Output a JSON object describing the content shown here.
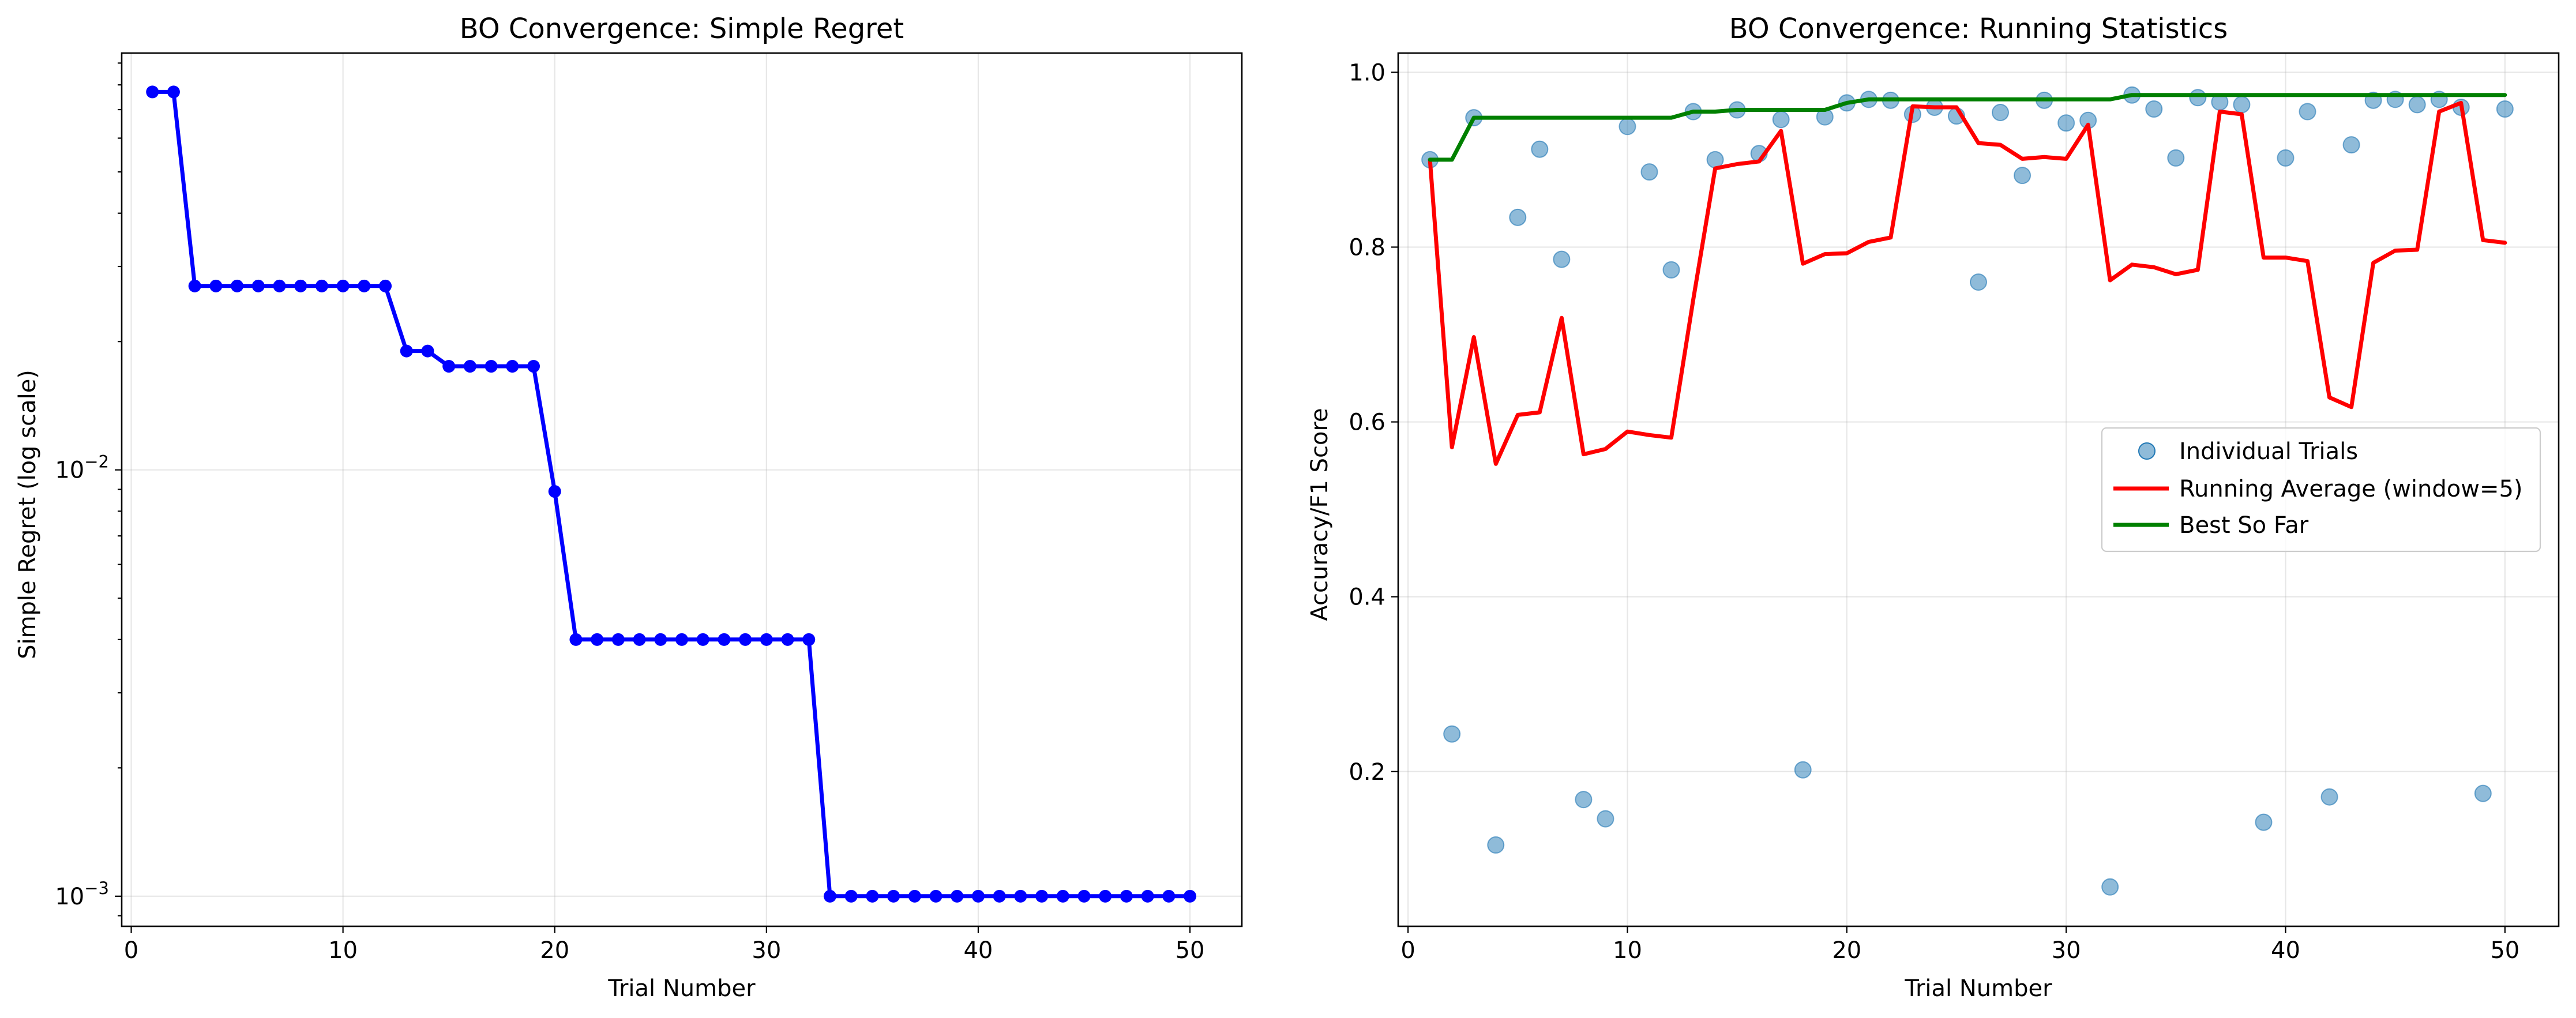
{
  "chart_data": [
    {
      "type": "line",
      "title": "BO Convergence: Simple Regret",
      "xlabel": "Trial Number",
      "ylabel": "Simple Regret (log scale)",
      "xlim": [
        -0.45,
        52.45
      ],
      "ylim": [
        0.00085,
        0.095
      ],
      "yscale": "log",
      "grid": true,
      "x_ticks": [
        0,
        10,
        20,
        30,
        40,
        50
      ],
      "y_ticks": [
        {
          "value": 0.01,
          "base": "10",
          "exp": "−2"
        },
        {
          "value": 0.001,
          "base": "10",
          "exp": "−3"
        }
      ],
      "series": [
        {
          "color": "#0000ff",
          "marker": "circle",
          "x": [
            1,
            2,
            3,
            4,
            5,
            6,
            7,
            8,
            9,
            10,
            11,
            12,
            13,
            14,
            15,
            16,
            17,
            18,
            19,
            20,
            21,
            22,
            23,
            24,
            25,
            26,
            27,
            28,
            29,
            30,
            31,
            32,
            33,
            34,
            35,
            36,
            37,
            38,
            39,
            40,
            41,
            42,
            43,
            44,
            45,
            46,
            47,
            48,
            49,
            50
          ],
          "y": [
            0.077,
            0.077,
            0.027,
            0.027,
            0.027,
            0.027,
            0.027,
            0.027,
            0.027,
            0.027,
            0.027,
            0.027,
            0.019,
            0.019,
            0.0175,
            0.0175,
            0.0175,
            0.0175,
            0.0175,
            0.0089,
            0.004,
            0.004,
            0.004,
            0.004,
            0.004,
            0.004,
            0.004,
            0.004,
            0.004,
            0.004,
            0.004,
            0.004,
            0.001,
            0.001,
            0.001,
            0.001,
            0.001,
            0.001,
            0.001,
            0.001,
            0.001,
            0.001,
            0.001,
            0.001,
            0.001,
            0.001,
            0.001,
            0.001,
            0.001,
            0.001
          ]
        }
      ]
    },
    {
      "type": "line",
      "title": "BO Convergence: Running Statistics",
      "xlabel": "Trial Number",
      "ylabel": "Accuracy/F1 Score",
      "xlim": [
        -0.45,
        52.45
      ],
      "ylim": [
        0.023,
        1.022
      ],
      "grid": true,
      "legend_position": "center-right",
      "x_ticks": [
        0,
        10,
        20,
        30,
        40,
        50
      ],
      "y_ticks": [
        0.2,
        0.4,
        0.6,
        0.8,
        1.0
      ],
      "y_tick_labels": [
        "0.2",
        "0.4",
        "0.6",
        "0.8",
        "1.0"
      ],
      "series": [
        {
          "name": "Individual Trials",
          "kind": "scatter",
          "color": "#1f77b4",
          "x": [
            1,
            2,
            3,
            4,
            5,
            6,
            7,
            8,
            9,
            10,
            11,
            12,
            13,
            14,
            15,
            16,
            17,
            18,
            19,
            20,
            21,
            22,
            23,
            24,
            25,
            26,
            27,
            28,
            29,
            30,
            31,
            32,
            33,
            34,
            35,
            36,
            37,
            38,
            39,
            40,
            41,
            42,
            43,
            44,
            45,
            46,
            47,
            48,
            49,
            50
          ],
          "y": [
            0.9,
            0.243,
            0.948,
            0.116,
            0.834,
            0.912,
            0.786,
            0.168,
            0.146,
            0.938,
            0.886,
            0.774,
            0.955,
            0.9,
            0.957,
            0.907,
            0.946,
            0.202,
            0.949,
            0.965,
            0.969,
            0.968,
            0.952,
            0.96,
            0.95,
            0.76,
            0.954,
            0.882,
            0.968,
            0.942,
            0.945,
            0.068,
            0.974,
            0.958,
            0.902,
            0.971,
            0.966,
            0.963,
            0.142,
            0.902,
            0.955,
            0.171,
            0.917,
            0.968,
            0.969,
            0.963,
            0.969,
            0.96,
            0.175,
            0.958
          ]
        },
        {
          "name": "Running Average (window=5)",
          "kind": "line",
          "color": "#ff0000",
          "x": [
            1,
            2,
            3,
            4,
            5,
            6,
            7,
            8,
            9,
            10,
            11,
            12,
            13,
            14,
            15,
            16,
            17,
            18,
            19,
            20,
            21,
            22,
            23,
            24,
            25,
            26,
            27,
            28,
            29,
            30,
            31,
            32,
            33,
            34,
            35,
            36,
            37,
            38,
            39,
            40,
            41,
            42,
            43,
            44,
            45,
            46,
            47,
            48,
            49,
            50
          ],
          "y": [
            0.9,
            0.571,
            0.697,
            0.552,
            0.608,
            0.611,
            0.719,
            0.563,
            0.569,
            0.589,
            0.585,
            0.582,
            0.74,
            0.89,
            0.895,
            0.898,
            0.933,
            0.781,
            0.792,
            0.793,
            0.806,
            0.811,
            0.961,
            0.96,
            0.96,
            0.919,
            0.917,
            0.901,
            0.903,
            0.901,
            0.94,
            0.762,
            0.78,
            0.777,
            0.769,
            0.774,
            0.955,
            0.952,
            0.788,
            0.788,
            0.784,
            0.628,
            0.617,
            0.782,
            0.796,
            0.797,
            0.955,
            0.965,
            0.808,
            0.805
          ]
        },
        {
          "name": "Best So Far",
          "kind": "line",
          "color": "#008000",
          "x": [
            1,
            2,
            3,
            4,
            5,
            6,
            7,
            8,
            9,
            10,
            11,
            12,
            13,
            14,
            15,
            16,
            17,
            18,
            19,
            20,
            21,
            22,
            23,
            24,
            25,
            26,
            27,
            28,
            29,
            30,
            31,
            32,
            33,
            34,
            35,
            36,
            37,
            38,
            39,
            40,
            41,
            42,
            43,
            44,
            45,
            46,
            47,
            48,
            49,
            50
          ],
          "y": [
            0.9,
            0.9,
            0.948,
            0.948,
            0.948,
            0.948,
            0.948,
            0.948,
            0.948,
            0.948,
            0.948,
            0.948,
            0.955,
            0.955,
            0.957,
            0.957,
            0.957,
            0.957,
            0.957,
            0.965,
            0.969,
            0.969,
            0.969,
            0.969,
            0.969,
            0.969,
            0.969,
            0.969,
            0.969,
            0.969,
            0.969,
            0.969,
            0.974,
            0.974,
            0.974,
            0.974,
            0.974,
            0.974,
            0.974,
            0.974,
            0.974,
            0.974,
            0.974,
            0.974,
            0.974,
            0.974,
            0.974,
            0.974,
            0.974,
            0.974
          ]
        }
      ]
    }
  ]
}
